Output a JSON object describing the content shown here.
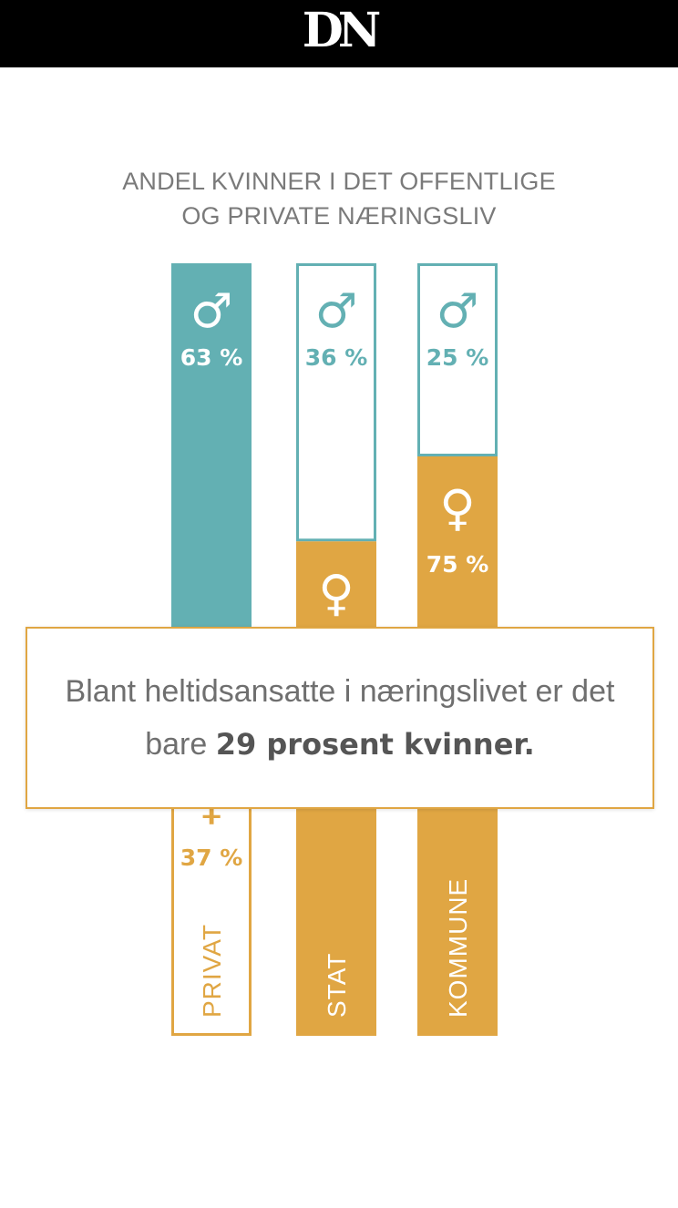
{
  "header": {
    "logo_text": "DN"
  },
  "colors": {
    "male": "#63b0b3",
    "female": "#e0a643",
    "title": "#7a7a7a"
  },
  "chart_data": {
    "type": "bar",
    "stacked": true,
    "title": "ANDEL KVINNER I DET  OFFENTLIGE OG PRIVATE NÆRINGSLIV",
    "title_lines": [
      "ANDEL KVINNER I DET  OFFENTLIGE",
      "OG PRIVATE NÆRINGSLIV"
    ],
    "categories": [
      "PRIVAT",
      "STAT",
      "KOMMUNE"
    ],
    "series": [
      {
        "symbol": "♂",
        "values": [
          63,
          36,
          25
        ],
        "labels": [
          "63 %",
          "36 %",
          "25 %"
        ]
      },
      {
        "symbol": "♀",
        "values": [
          37,
          64,
          75
        ],
        "labels": [
          "37 %",
          "",
          "75 %"
        ]
      }
    ],
    "ylim": [
      0,
      100
    ]
  },
  "callout": {
    "text_before": "Blant heltidsansatte i næringslivet er det bare ",
    "text_bold": "29 prosent kvinner."
  }
}
